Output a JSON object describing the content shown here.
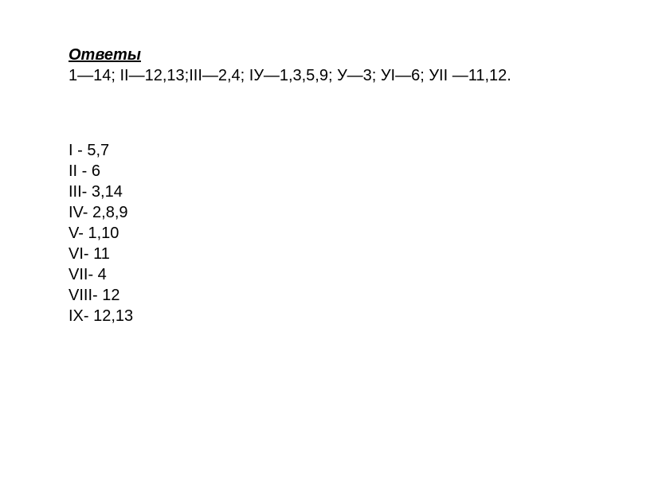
{
  "title": "Ответы",
  "answer_line": "1—14; II—12,13;III—2,4; IУ—1,3,5,9; У—3; УI—6; УII —11,12.",
  "list": [
    "I - 5,7",
    "II -  6",
    "III-  3,14",
    "IV-  2,8,9",
    "V-  1,10",
    "VI-  11",
    "VII- 4",
    "VIII-  12",
    "IX-  12,13"
  ],
  "colors": {
    "background": "#ffffff",
    "text": "#000000"
  },
  "fontsize": 20
}
